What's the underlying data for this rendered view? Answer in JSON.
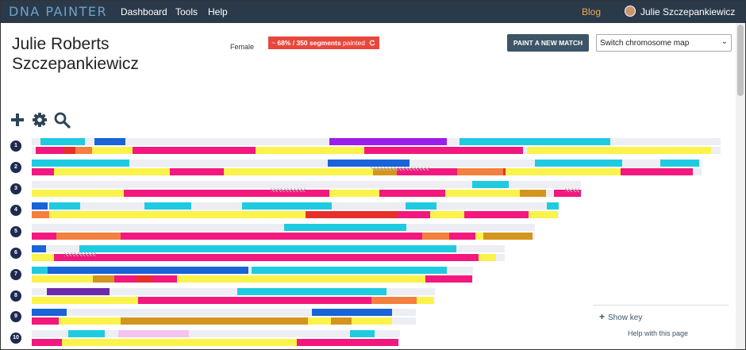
{
  "nav": {
    "brand": "DNA PAINTER",
    "links": [
      "Dashboard",
      "Tools",
      "Help"
    ],
    "blog": "Blog",
    "user": "Julie Szczepankiewicz"
  },
  "profile": {
    "name": "Julie Roberts Szczepankiewicz",
    "gender": "Female",
    "badge_prefix": "~",
    "badge_bold": "68% / 350 segments",
    "badge_rest": "painted"
  },
  "actions": {
    "paint_button": "PAINT A NEW MATCH",
    "switch_select": "Switch chromosome map"
  },
  "tools": [
    "plus-icon",
    "gear-icon",
    "search-icon"
  ],
  "key": {
    "show_key": "Show key",
    "help": "Help with this page"
  },
  "colors": {
    "nav_bg": "#2b3a4a",
    "badge": "#e8473c",
    "button": "#3d5567",
    "cyan": "#1fcbe0",
    "blue": "#1a63d8",
    "purple": "#9b1fe8",
    "pink": "#f2187e",
    "yellow": "#fbf34b",
    "orange": "#f57f3e",
    "red": "#e8302a",
    "gold": "#d4951e",
    "dark_purple": "#6d2aa8",
    "light_pink": "#f5c3ef"
  },
  "chromosomes": [
    {
      "label": "1",
      "top": [
        [
          50,
          56,
          "cyan"
        ],
        [
          118,
          39,
          "blue"
        ],
        [
          414,
          148,
          "purple"
        ],
        [
          578,
          190,
          "cyan"
        ]
      ],
      "bottom": [
        [
          44,
          35,
          "pink"
        ],
        [
          79,
          15,
          "red"
        ],
        [
          94,
          21,
          "orange"
        ],
        [
          115,
          51,
          "yellow"
        ],
        [
          166,
          155,
          "pink"
        ],
        [
          321,
          137,
          "yellow"
        ],
        [
          458,
          200,
          "pink"
        ],
        [
          663,
          232,
          "yellow"
        ]
      ]
    },
    {
      "label": "2",
      "top": [
        [
          39,
          123,
          "cyan"
        ],
        [
          412,
          103,
          "blue"
        ],
        [
          673,
          110,
          "cyan"
        ],
        [
          831,
          49,
          "cyan"
        ]
      ],
      "bottom": [
        [
          39,
          28,
          "pink"
        ],
        [
          67,
          146,
          "yellow"
        ],
        [
          213,
          68,
          "pink"
        ],
        [
          281,
          188,
          "yellow"
        ],
        [
          469,
          30,
          "gold"
        ],
        [
          499,
          76,
          "pink"
        ],
        [
          575,
          58,
          "orange"
        ],
        [
          633,
          3,
          "red"
        ],
        [
          636,
          145,
          "yellow"
        ],
        [
          781,
          91,
          "pink"
        ]
      ]
    },
    {
      "label": "3",
      "top": [
        [
          594,
          46,
          "cyan"
        ]
      ],
      "bottom": [
        [
          39,
          116,
          "yellow"
        ],
        [
          155,
          259,
          "pink"
        ],
        [
          414,
          63,
          "yellow"
        ],
        [
          477,
          83,
          "pink"
        ],
        [
          560,
          94,
          "yellow"
        ],
        [
          654,
          33,
          "gold"
        ],
        [
          697,
          34,
          "pink"
        ]
      ]
    },
    {
      "label": "4",
      "top": [
        [
          39,
          20,
          "blue"
        ],
        [
          61,
          39,
          "cyan"
        ],
        [
          181,
          59,
          "cyan"
        ],
        [
          304,
          113,
          "cyan"
        ],
        [
          510,
          39,
          "cyan"
        ],
        [
          688,
          15,
          "cyan"
        ]
      ],
      "bottom": [
        [
          39,
          22,
          "orange"
        ],
        [
          61,
          323,
          "yellow"
        ],
        [
          384,
          116,
          "red"
        ],
        [
          500,
          41,
          "pink"
        ],
        [
          541,
          43,
          "yellow"
        ],
        [
          584,
          81,
          "pink"
        ],
        [
          665,
          37,
          "yellow"
        ]
      ]
    },
    {
      "label": "5",
      "top": [
        [
          357,
          154,
          "cyan"
        ]
      ],
      "bottom": [
        [
          39,
          31,
          "pink"
        ],
        [
          70,
          81,
          "orange"
        ],
        [
          151,
          380,
          "pink"
        ],
        [
          531,
          34,
          "orange"
        ],
        [
          565,
          33,
          "pink"
        ],
        [
          598,
          10,
          "yellow"
        ],
        [
          608,
          42,
          "gold"
        ],
        [
          650,
          20,
          "gold"
        ]
      ]
    },
    {
      "label": "6",
      "top": [
        [
          39,
          18,
          "blue"
        ],
        [
          99,
          475,
          "cyan"
        ]
      ],
      "bottom": [
        [
          39,
          28,
          "yellow"
        ],
        [
          67,
          535,
          "pink"
        ],
        [
          602,
          22,
          "yellow"
        ]
      ]
    },
    {
      "label": "7",
      "top": [
        [
          39,
          20,
          "cyan"
        ],
        [
          59,
          253,
          "blue"
        ],
        [
          316,
          246,
          "cyan"
        ]
      ],
      "bottom": [
        [
          39,
          77,
          "yellow"
        ],
        [
          116,
          27,
          "gold"
        ],
        [
          143,
          28,
          "pink"
        ],
        [
          171,
          20,
          "red"
        ],
        [
          191,
          31,
          "pink"
        ],
        [
          222,
          313,
          "yellow"
        ],
        [
          535,
          59,
          "pink"
        ]
      ]
    },
    {
      "label": "8",
      "top": [
        [
          58,
          79,
          "dark_purple"
        ],
        [
          298,
          188,
          "cyan"
        ]
      ],
      "bottom": [
        [
          39,
          134,
          "yellow"
        ],
        [
          173,
          294,
          "pink"
        ],
        [
          467,
          57,
          "orange"
        ],
        [
          524,
          21,
          "yellow"
        ]
      ]
    },
    {
      "label": "9",
      "top": [
        [
          39,
          44,
          "blue"
        ],
        [
          392,
          101,
          "blue"
        ]
      ],
      "bottom": [
        [
          39,
          34,
          "pink"
        ],
        [
          73,
          78,
          "yellow"
        ],
        [
          151,
          236,
          "gold"
        ],
        [
          387,
          29,
          "yellow"
        ],
        [
          416,
          26,
          "gold"
        ],
        [
          442,
          51,
          "yellow"
        ]
      ]
    },
    {
      "label": "10",
      "top": [
        [
          85,
          46,
          "cyan"
        ],
        [
          148,
          89,
          "light_pink"
        ],
        [
          440,
          31,
          "cyan"
        ]
      ],
      "bottom": [
        [
          39,
          38,
          "pink"
        ],
        [
          77,
          296,
          "yellow"
        ],
        [
          373,
          128,
          "pink"
        ]
      ]
    }
  ]
}
